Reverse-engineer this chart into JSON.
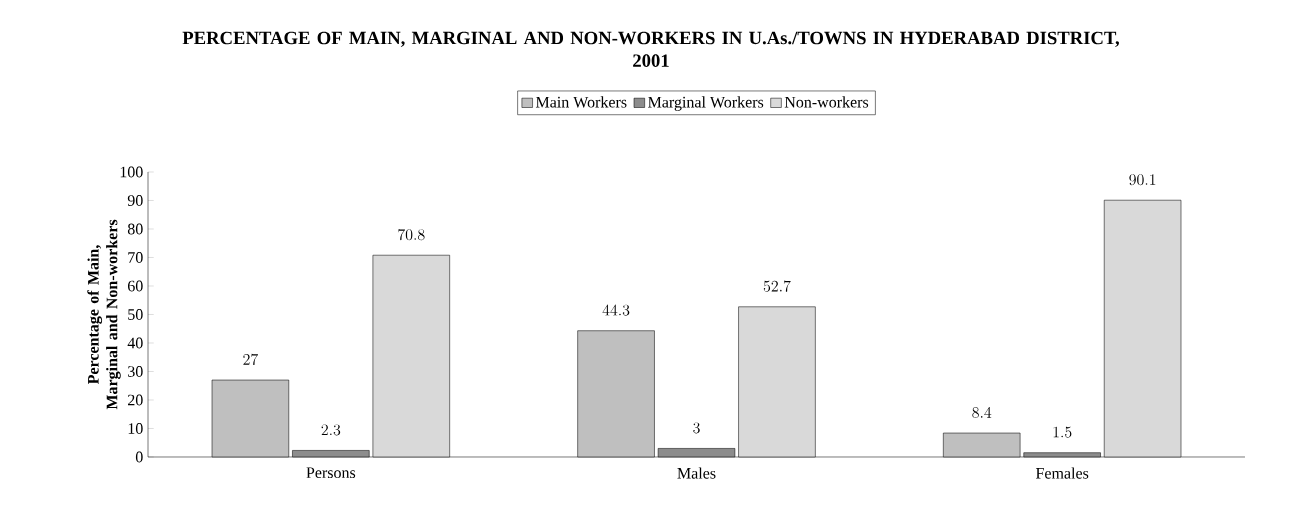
{
  "chart_data": {
    "type": "bar",
    "title": "PERCENTAGE OF MAIN, MARGINAL AND NON-WORKERS IN U.As./TOWNS IN HYDERABAD DISTRICT,  2001",
    "ylabel": "Percentage of Main, Marginal and Non-workers",
    "categories": [
      "Persons",
      "Males",
      "Females"
    ],
    "series": [
      {
        "name": "Main Workers",
        "color": "#bfbfbf",
        "values": [
          27,
          44.3,
          8.4
        ]
      },
      {
        "name": "Marginal Workers",
        "color": "#8c8c8c",
        "values": [
          2.3,
          3,
          1.5
        ]
      },
      {
        "name": "Non-workers",
        "color": "#d9d9d9",
        "values": [
          70.8,
          52.7,
          90.1
        ]
      }
    ],
    "ylim": [
      0,
      100
    ],
    "yticks": [
      0,
      10,
      20,
      30,
      40,
      50,
      60,
      70,
      80,
      90,
      100
    ],
    "data_labels": true,
    "legend": "top",
    "grid": false
  }
}
